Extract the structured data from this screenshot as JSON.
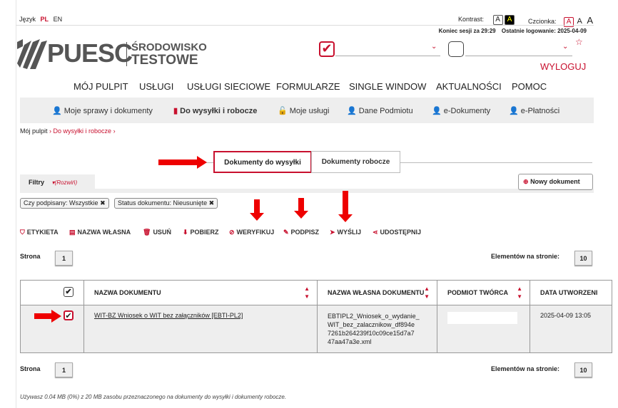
{
  "lang": {
    "label": "Język",
    "pl": "PL",
    "en": "EN"
  },
  "contrast": {
    "label": "Kontrast:",
    "a1": "A",
    "a2": "A"
  },
  "font": {
    "label": "Czcionka:",
    "a1": "A",
    "a2": "A",
    "a3": "A"
  },
  "session": {
    "text": "Koniec sesji za 29:29",
    "last_login": "Ostatnie logowanie: 2025-04-09"
  },
  "logo": {
    "name": "PUESC",
    "line1": "ŚRODOWISKO",
    "line2": "TESTOWE"
  },
  "logout": "WYLOGUJ",
  "nav": [
    "MÓJ PULPIT",
    "USŁUGI",
    "USŁUGI SIECIOWE",
    "FORMULARZE",
    "SINGLE WINDOW",
    "AKTUALNOŚCI",
    "POMOC"
  ],
  "subnav": [
    "Moje sprawy i dokumenty",
    "Do wysyłki i robocze",
    "Moje usługi",
    "Dane Podmiotu",
    "e-Dokumenty",
    "e-Płatności"
  ],
  "breadcrumb": [
    "Mój pulpit",
    "Do wysyłki i robocze"
  ],
  "tabs": [
    "Dokumenty do wysyłki",
    "Dokumenty robocze"
  ],
  "filters": {
    "label": "Filtry",
    "expand": "(Rozwiń)",
    "chips": [
      "Czy podpisany: Wszystkie",
      "Status dokumentu: Nieusunięte"
    ]
  },
  "new_doc": "Nowy dokument",
  "toolbar": [
    "ETYKIETA",
    "NAZWA WŁASNA",
    "USUŃ",
    "POBIERZ",
    "WERYFIKUJ",
    "PODPISZ",
    "WYŚLIJ",
    "UDOSTĘPNIJ"
  ],
  "pager": {
    "page_label": "Strona",
    "page": "1",
    "per_page_label": "Elementów na stronie:",
    "per_page": "10"
  },
  "table": {
    "headers": [
      "NAZWA DOKUMENTU",
      "NAZWA WŁASNA DOKUMENTU",
      "PODMIOT TWÓRCA",
      "DATA UTWORZENI"
    ],
    "rows": [
      {
        "checked": true,
        "name": "WIT-BZ Wniosek o WIT bez załączników [EBTI-PL2]",
        "own_name": "EBTIPL2_Wniosek_o_wydanie_ WIT_bez_zalacznikow_df894e 7261b264239f10c09ce15d7a7 47aa47a3e.xml",
        "creator": "",
        "date": "2025-04-09 13:05"
      }
    ]
  },
  "footer": "Używasz 0.04 MB (0%) z 20 MB zasobu przeznaczonego na dokumenty do wysyłki i dokumenty robocze.",
  "colors": {
    "accent": "#c8102e",
    "arrow": "#e00000"
  }
}
